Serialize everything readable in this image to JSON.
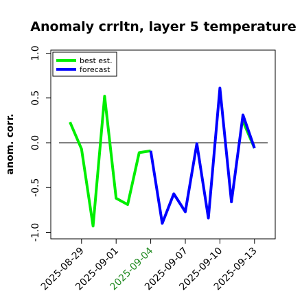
{
  "chart_data": {
    "type": "line",
    "title": "Anomaly crrltn, layer 5 temperature",
    "xlabel": "",
    "ylabel": "anom. corr.",
    "ylim": [
      -1.0,
      1.0
    ],
    "yticks": [
      "-1.0",
      "-0.5",
      "0.0",
      "0.5",
      "1.0"
    ],
    "x": [
      "2025-08-28",
      "2025-08-29",
      "2025-08-30",
      "2025-08-31",
      "2025-09-01",
      "2025-09-02",
      "2025-09-03",
      "2025-09-04",
      "2025-09-05",
      "2025-09-06",
      "2025-09-07",
      "2025-09-08",
      "2025-09-09",
      "2025-09-10",
      "2025-09-11",
      "2025-09-12",
      "2025-09-13"
    ],
    "xticks": [
      {
        "label": "2025-08-29",
        "color": "#000000"
      },
      {
        "label": "2025-09-01",
        "color": "#000000"
      },
      {
        "label": "2025-09-04",
        "color": "#228b22"
      },
      {
        "label": "2025-09-07",
        "color": "#000000"
      },
      {
        "label": "2025-09-10",
        "color": "#000000"
      },
      {
        "label": "2025-09-13",
        "color": "#000000"
      }
    ],
    "reference_line": 0.0,
    "legend_position": "top-left",
    "series": [
      {
        "name": "best est.",
        "color": "#00ee00",
        "values": [
          0.23,
          -0.07,
          -0.93,
          0.52,
          -0.62,
          -0.69,
          -0.11,
          -0.09,
          null,
          null,
          null,
          null,
          null,
          0.64,
          null,
          0.24,
          -0.06
        ]
      },
      {
        "name": "forecast",
        "color": "#0000ff",
        "values": [
          null,
          null,
          null,
          null,
          null,
          null,
          null,
          -0.09,
          -0.9,
          -0.57,
          -0.77,
          -0.01,
          -0.84,
          0.61,
          -0.66,
          0.31,
          -0.06
        ]
      }
    ]
  }
}
